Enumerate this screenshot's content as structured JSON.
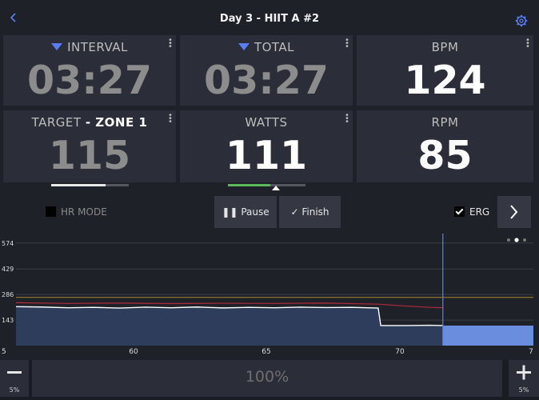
{
  "header": {
    "title": "Day 3 - HIIT A #2",
    "back_icon": "chevron-left-icon",
    "settings_icon": "gear-icon"
  },
  "tiles": {
    "interval": {
      "label": "INTERVAL",
      "value": "03:27"
    },
    "total": {
      "label": "TOTAL",
      "value": "03:27"
    },
    "bpm": {
      "label": "BPM",
      "value": "124"
    },
    "target": {
      "label": "TARGET",
      "zone": "- ZONE 1",
      "value": "115",
      "progress": 0.7
    },
    "watts": {
      "label": "WATTS",
      "value": "111",
      "progress": 0.55
    },
    "rpm": {
      "label": "RPM",
      "value": "85"
    }
  },
  "controls": {
    "hr_mode_label": "HR MODE",
    "pause_label": "Pause",
    "finish_label": "Finish",
    "erg_label": "ERG",
    "erg_checked": true,
    "hr_mode_checked": false
  },
  "colors": {
    "accent": "#5a7ef2",
    "target_bar": "#e8e8e8",
    "watts_bar": "#5cb85c",
    "hr_line": "#b02a3a",
    "power_fill": "#2f3d5c",
    "future_fill": "#6a8edd"
  },
  "chart_data": {
    "type": "area",
    "y_ticks": [
      "574",
      "429",
      "286",
      "143"
    ],
    "x_ticks": [
      "5",
      "60",
      "65",
      "70",
      "7"
    ],
    "x_range": [
      55,
      75
    ],
    "y_range": [
      0,
      600
    ],
    "current_x": 71.5,
    "series": [
      {
        "x": [
          55,
          56,
          57,
          58,
          59,
          60,
          61,
          62,
          63,
          64,
          65,
          66,
          67,
          68,
          69,
          69.1,
          70,
          71,
          71.5
        ],
        "values": [
          218,
          216,
          212,
          214,
          210,
          215,
          212,
          216,
          211,
          214,
          212,
          215,
          213,
          214,
          210,
          112,
          112,
          114,
          112
        ]
      },
      {
        "x": [
          55,
          57,
          59,
          61,
          63,
          65,
          67,
          69,
          70,
          71,
          71.5
        ],
        "values": [
          240,
          236,
          238,
          235,
          237,
          236,
          238,
          232,
          222,
          214,
          212
        ]
      },
      {
        "x": [
          71.5,
          75
        ],
        "values": [
          112,
          112
        ]
      }
    ]
  },
  "bottom": {
    "minus_label": "5%",
    "center_label": "100%",
    "plus_label": "5%"
  }
}
